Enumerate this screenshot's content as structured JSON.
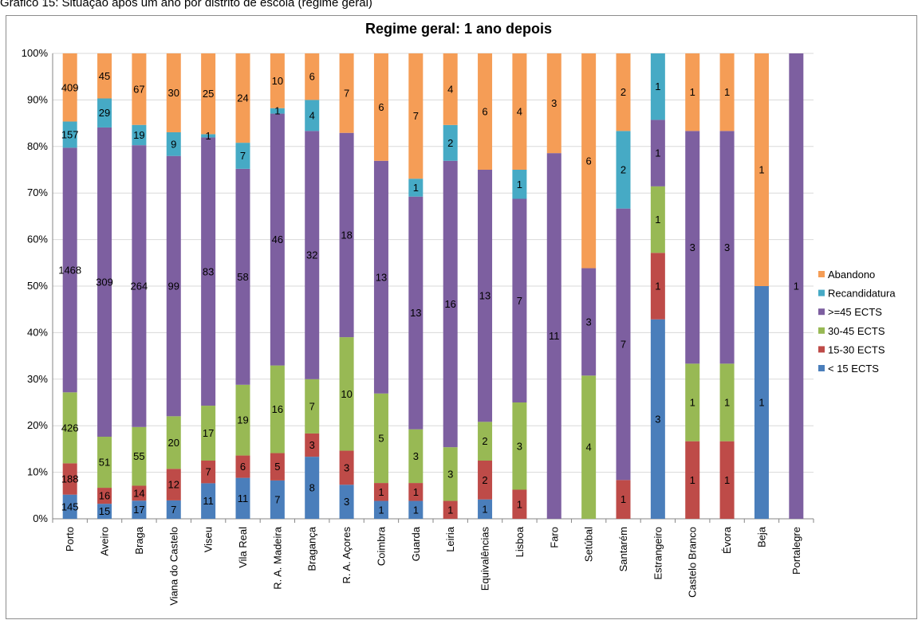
{
  "caption": "Gráfico 15: Situação após um ano por distrito de escola (regime geral)",
  "chart_data": {
    "type": "bar",
    "stacked": "percent",
    "title": "Regime geral: 1 ano depois",
    "xlabel": "",
    "ylabel": "",
    "ylim": [
      0,
      100
    ],
    "y_ticks": [
      "0%",
      "10%",
      "20%",
      "30%",
      "40%",
      "50%",
      "60%",
      "70%",
      "80%",
      "90%",
      "100%"
    ],
    "grid": true,
    "legend_position": "right",
    "categories": [
      "Porto",
      "Aveiro",
      "Braga",
      "Viana do Castelo",
      "Viseu",
      "Vila Real",
      "R. A. Madeira",
      "Bragança",
      "R. A. Açores",
      "Coimbra",
      "Guarda",
      "Leiria",
      "Equivalências",
      "Lisboa",
      "Faro",
      "Setúbal",
      "Santarém",
      "Estrangeiro",
      "Castelo Branco",
      "Évora",
      "Beja",
      "Portalegre"
    ],
    "series": [
      {
        "name": "< 15 ECTS",
        "color": "#4a7ebb",
        "values": [
          145,
          15,
          17,
          7,
          11,
          11,
          7,
          8,
          3,
          1,
          1,
          0,
          1,
          0,
          0,
          0,
          0,
          3,
          0,
          0,
          1,
          0
        ]
      },
      {
        "name": "15-30 ECTS",
        "color": "#be4b48",
        "values": [
          188,
          16,
          14,
          12,
          7,
          6,
          5,
          3,
          3,
          1,
          1,
          1,
          2,
          1,
          0,
          0,
          1,
          1,
          1,
          1,
          0,
          0
        ]
      },
      {
        "name": "30-45 ECTS",
        "color": "#98b954",
        "values": [
          426,
          51,
          55,
          20,
          17,
          19,
          16,
          7,
          10,
          5,
          3,
          3,
          2,
          3,
          0,
          4,
          0,
          1,
          1,
          1,
          0,
          0
        ]
      },
      {
        "name": ">=45 ECTS",
        "color": "#7d5fa0",
        "values": [
          1468,
          309,
          264,
          99,
          83,
          58,
          46,
          32,
          18,
          13,
          13,
          16,
          13,
          7,
          11,
          3,
          7,
          1,
          3,
          3,
          0,
          1
        ]
      },
      {
        "name": "Recandidatura",
        "color": "#46aac5",
        "values": [
          157,
          29,
          19,
          9,
          1,
          7,
          1,
          4,
          0,
          0,
          1,
          2,
          0,
          1,
          0,
          0,
          2,
          1,
          0,
          0,
          0,
          0
        ]
      },
      {
        "name": "Abandono",
        "color": "#f59d56",
        "values": [
          409,
          45,
          67,
          30,
          25,
          24,
          10,
          6,
          7,
          6,
          7,
          4,
          6,
          4,
          3,
          6,
          2,
          0,
          1,
          1,
          1,
          0
        ]
      }
    ]
  }
}
